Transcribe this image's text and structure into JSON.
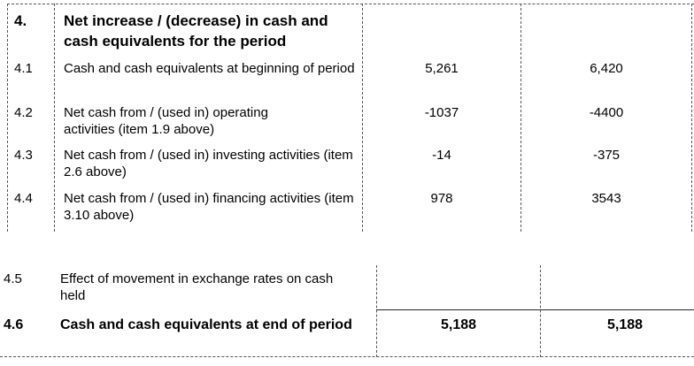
{
  "section1": {
    "heading": {
      "num": "4.",
      "label": "Net increase / (decrease) in cash and cash equivalents for the period"
    },
    "rows": [
      {
        "num": "4.1",
        "label": "Cash and cash equivalents at beginning of period",
        "current": "5,261",
        "prior": "6,420"
      },
      {
        "num": "4.2",
        "label": "Net cash from / (used in) operating activities (item 1.9 above)",
        "current": "-1037",
        "prior": "-4400"
      },
      {
        "num": "4.3",
        "label": "Net cash from / (used in) investing activities (item 2.6 above)",
        "current": "-14",
        "prior": "-375"
      },
      {
        "num": "4.4",
        "label": "Net cash from / (used in) financing activities (item 3.10 above)",
        "current": "978",
        "prior": "3543"
      }
    ]
  },
  "section2": {
    "rows": [
      {
        "num": "4.5",
        "label": "Effect of movement in exchange rates on cash held",
        "current": "",
        "prior": ""
      },
      {
        "num": "4.6",
        "label": "Cash and cash equivalents at end of period",
        "current": "5,188",
        "prior": "5,188"
      }
    ]
  }
}
